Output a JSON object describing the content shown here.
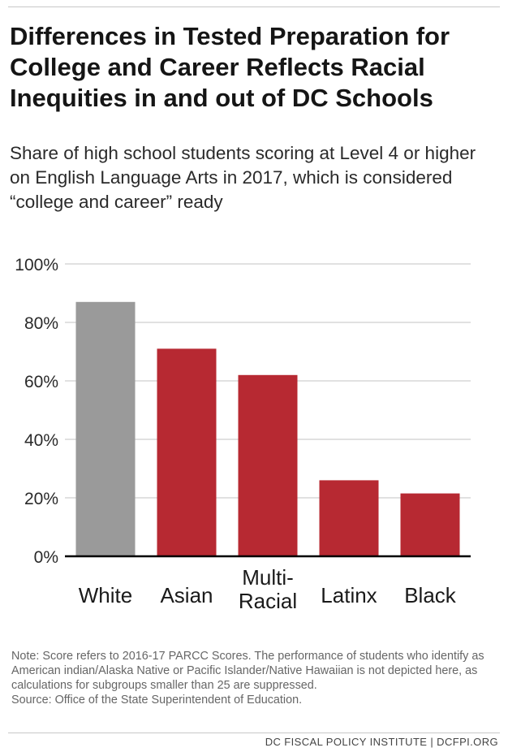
{
  "title": "Differences in Tested Preparation for College and Career Reflects Racial Inequities in and out of DC Schools",
  "subtitle": "Share of high school students scoring at Level 4 or higher on English Language Arts in 2017, which is considered “college and career” ready",
  "chart_data": {
    "type": "bar",
    "categories": [
      [
        "White"
      ],
      [
        "Asian"
      ],
      [
        "Multi-",
        "Racial"
      ],
      [
        "Latinx"
      ],
      [
        "Black"
      ]
    ],
    "values": [
      87,
      71,
      62,
      26,
      21.5
    ],
    "unit": "%",
    "ylim": [
      0,
      100
    ],
    "yticks": [
      "0%",
      "20%",
      "40%",
      "60%",
      "80%",
      "100%"
    ],
    "grid": true,
    "bar_colors": [
      "#9a9a9a",
      "#b72932",
      "#b72932",
      "#b72932",
      "#b72932"
    ],
    "gridline_color": "#cfcfcf",
    "baseline_color": "#000000"
  },
  "notes": {
    "note": "Note: Score refers to 2016-17 PARCC Scores. The performance of students who identify as American indian/Alaska Native or Pacific Islander/Native Hawaiian is not depicted here, as calculations for subgroups smaller than 25 are suppressed.",
    "source": "Source: Office of the State Superintendent of Education."
  },
  "footer": "DC FISCAL POLICY INSTITUTE | DCFPI.ORG"
}
